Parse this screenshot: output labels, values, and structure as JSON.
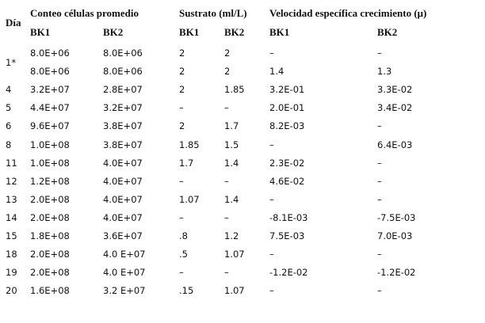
{
  "table": {
    "header": {
      "day": "Día",
      "groups": [
        "Conteo células promedio",
        "Sustrato (ml/L)",
        "Velocidad específica crecimiento (μ)"
      ],
      "subheaders": [
        "BK1",
        "BK2",
        "BK1",
        "BK2",
        "BK1",
        "BK2"
      ]
    },
    "rows": [
      {
        "day": "1*",
        "values": [
          [
            "8.0E+06",
            "8.0E+06",
            "2",
            "2",
            "–",
            "–"
          ],
          [
            "8.0E+06",
            "8.0E+06",
            "2",
            "2",
            "1.4",
            "1.3"
          ]
        ]
      },
      {
        "day": "4",
        "values": [
          [
            "3.2E+07",
            "2.8E+07",
            "2",
            "1.85",
            "3.2E-01",
            "3.3E-02"
          ]
        ]
      },
      {
        "day": "5",
        "values": [
          [
            "4.4E+07",
            "3.2E+07",
            "–",
            "–",
            "2.0E-01",
            "3.4E-02"
          ]
        ]
      },
      {
        "day": "6",
        "values": [
          [
            "9.6E+07",
            "3.8E+07",
            "2",
            "1.7",
            "8.2E-03",
            "–"
          ]
        ]
      },
      {
        "day": "8",
        "values": [
          [
            "1.0E+08",
            "3.8E+07",
            "1.85",
            "1.5",
            "–",
            "6.4E-03"
          ]
        ]
      },
      {
        "day": "11",
        "values": [
          [
            "1.0E+08",
            "4.0E+07",
            "1.7",
            "1.4",
            "2.3E-02",
            "–"
          ]
        ]
      },
      {
        "day": "12",
        "values": [
          [
            "1.2E+08",
            "4.0E+07",
            "–",
            "–",
            "4.6E-02",
            "–"
          ]
        ]
      },
      {
        "day": "13",
        "values": [
          [
            "2.0E+08",
            "4.0E+07",
            "1.07",
            "1.4",
            "–",
            "–"
          ]
        ]
      },
      {
        "day": "14",
        "values": [
          [
            "2.0E+08",
            "4.0E+07",
            "–",
            "–",
            "-8.1E-03",
            "-7.5E-03"
          ]
        ]
      },
      {
        "day": "15",
        "values": [
          [
            "1.8E+08",
            "3.6E+07",
            ".8",
            "1.2",
            "7.5E-03",
            "7.0E-03"
          ]
        ]
      },
      {
        "day": "18",
        "values": [
          [
            "2.0E+08",
            "4.0 E+07",
            ".5",
            "1.07",
            "–",
            "–"
          ]
        ]
      },
      {
        "day": "19",
        "values": [
          [
            "2.0E+08",
            "4.0 E+07",
            "–",
            "–",
            "-1.2E-02",
            "-1.2E-02"
          ]
        ]
      },
      {
        "day": "20",
        "values": [
          [
            "1.6E+08",
            "3.2 E+07",
            ".15",
            "1.07",
            "–",
            "–"
          ]
        ]
      }
    ]
  }
}
